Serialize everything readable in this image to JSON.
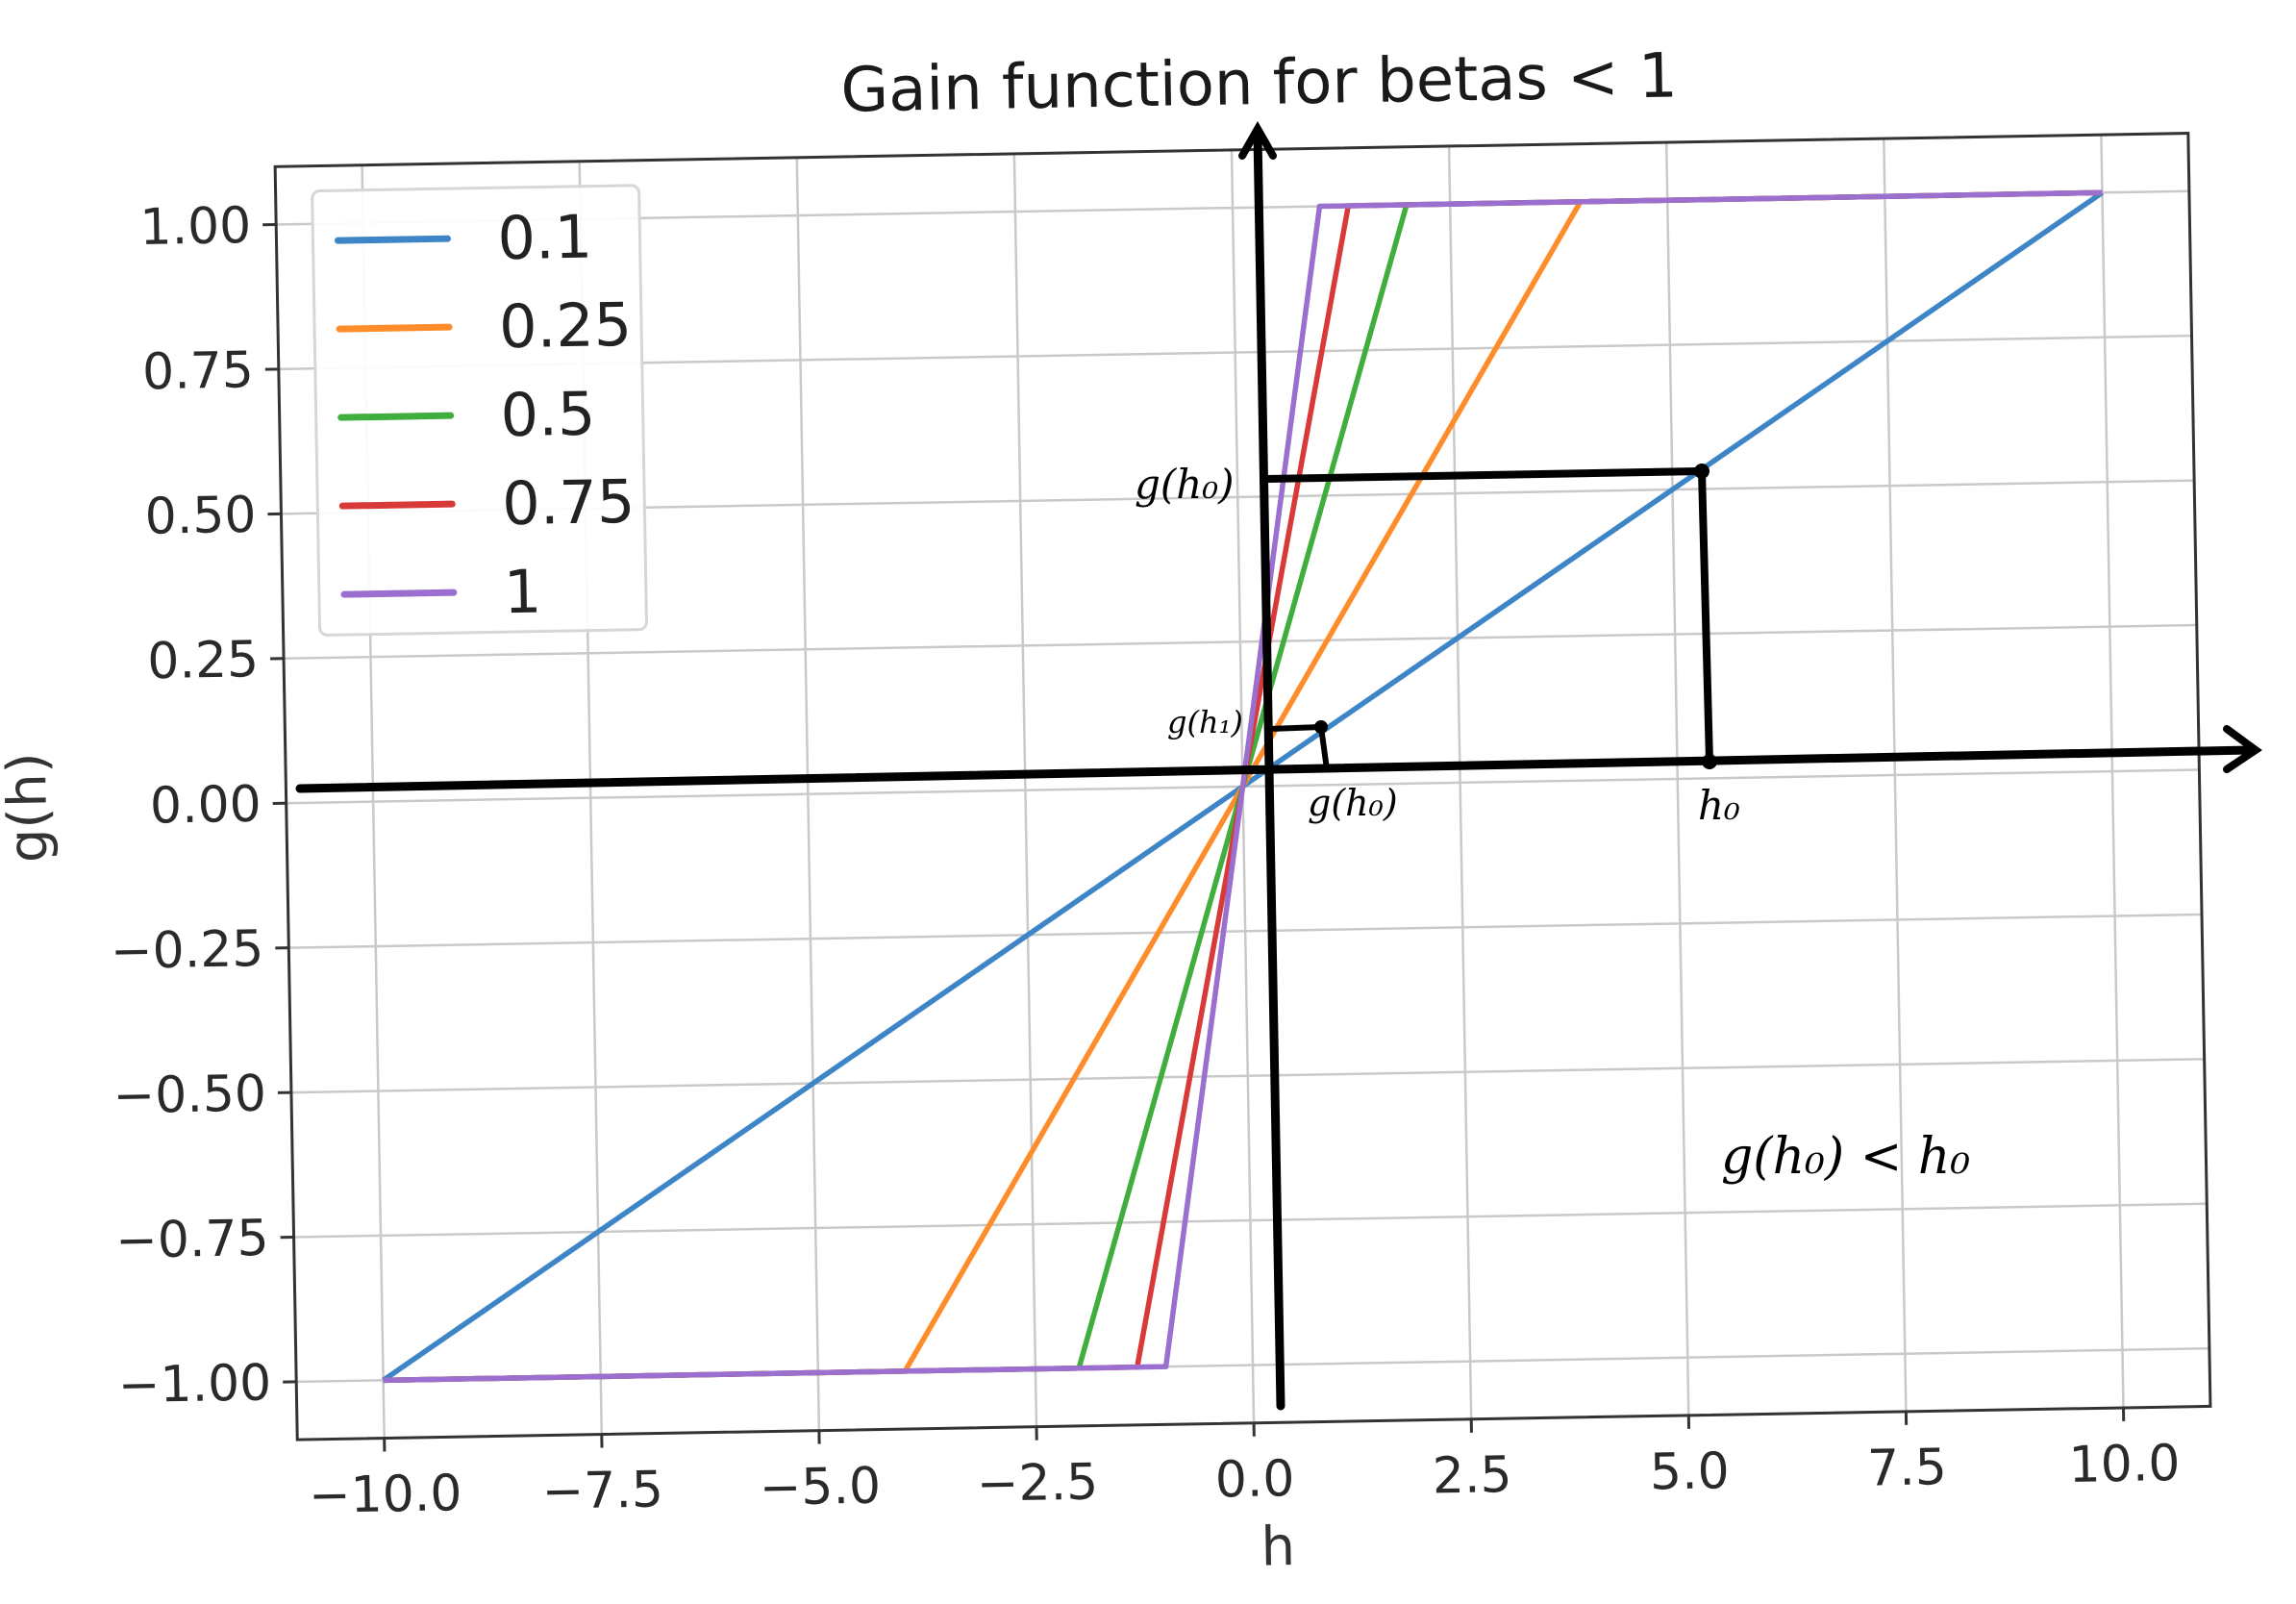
{
  "chart_data": {
    "type": "line",
    "title": "Gain function for betas < 1",
    "xlabel": "h",
    "ylabel": "g(h)",
    "xlim": [
      -11,
      11
    ],
    "ylim": [
      -1.1,
      1.1
    ],
    "grid": true,
    "legend_placement": "top-left",
    "x_ticks": [
      -10.0,
      -7.5,
      -5.0,
      -2.5,
      0.0,
      2.5,
      5.0,
      7.5,
      10.0
    ],
    "x_tick_labels": [
      "−10.0",
      "−7.5",
      "−5.0",
      "−2.5",
      "0.0",
      "2.5",
      "5.0",
      "7.5",
      "10.0"
    ],
    "y_ticks": [
      1.0,
      0.75,
      0.5,
      0.25,
      0.0,
      -0.25,
      -0.5,
      -0.75,
      -1.0
    ],
    "y_tick_labels": [
      "1.00",
      "0.75",
      "0.50",
      "0.25",
      "0.00",
      "−0.25",
      "−0.50",
      "−0.75",
      "−1.00"
    ],
    "series": [
      {
        "name": "0.1",
        "color": "#3d85c6",
        "x": [
          -10,
          10
        ],
        "y": [
          -1,
          1
        ]
      },
      {
        "name": "0.25",
        "color": "#ff8c2a",
        "x": [
          -10,
          -4,
          4,
          10
        ],
        "y": [
          -1,
          -1,
          1,
          1
        ]
      },
      {
        "name": "0.5",
        "color": "#3fae3f",
        "x": [
          -10,
          -2,
          2,
          10
        ],
        "y": [
          -1,
          -1,
          1,
          1
        ]
      },
      {
        "name": "0.75",
        "color": "#d83a3a",
        "x": [
          -10,
          -1.33,
          1.33,
          10
        ],
        "y": [
          -1,
          -1,
          1,
          1
        ]
      },
      {
        "name": "1",
        "color": "#9a6fcf",
        "x": [
          -10,
          -1,
          1,
          10
        ],
        "y": [
          -1,
          -1,
          1,
          1
        ]
      }
    ],
    "annotations": {
      "g_h0_left": "g(h₀)",
      "g_h1": "g(h₁)",
      "g_h0_small": "g(h₀)",
      "h0": "h₀",
      "relation": "g(h₀) < h₀",
      "h0_value": 5.0,
      "g_h0_value": 0.5,
      "h1_value": 0.5,
      "g_h1_value": 0.1
    }
  }
}
